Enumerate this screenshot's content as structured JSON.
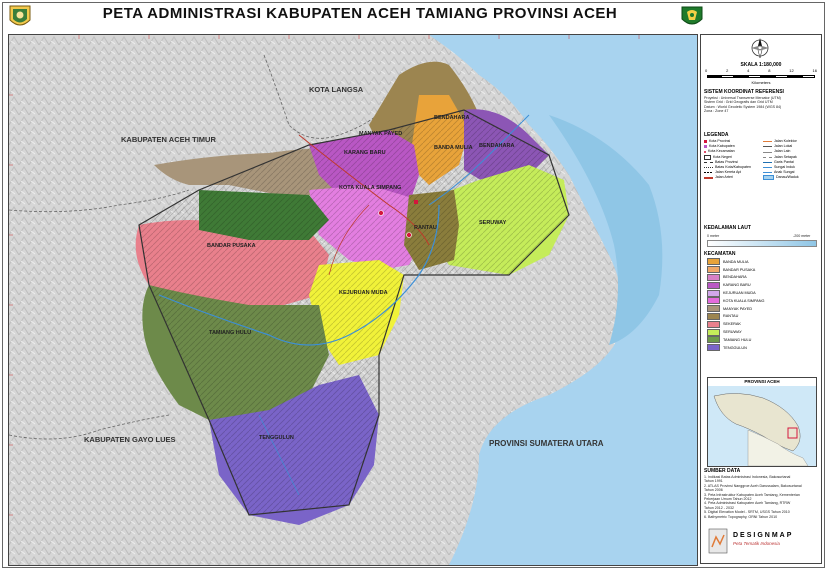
{
  "title": "PETA ADMINISTRASI KABUPATEN ACEH TAMIANG PROVINSI ACEH",
  "map_labels": {
    "kota_langsa": "KOTA LANGSA",
    "kab_aceh_timur": "KABUPATEN ACEH TIMUR",
    "kab_gayo_lues": "KABUPATEN GAYO LUES",
    "prov_sumut": "PROVINSI SUMATERA UTARA",
    "tenggulun": "TENGGULUN",
    "karang_baru": "KARANG BARU",
    "manyak_payed": "MANYAK PAYED",
    "bendahara": "BENDAHARA",
    "banda_mulia": "BANDA MULIA",
    "kejuruan_muda": "KEJURUAN MUDA",
    "tamiang_hulu": "TAMIANG HULU",
    "bandar_pusaka": "BANDAR PUSAKA",
    "rantau": "RANTAU",
    "kota_kuala_simpang": "KOTA KUALA SIMPANG",
    "sekerak": "SEKERAK",
    "seruway": "SERUWAY",
    "bendahara2": "BENDAHARA"
  },
  "sidebar": {
    "scale_title": "SKALA 1:180,000",
    "scale_nums": [
      "0",
      "2",
      "4",
      "8",
      "12",
      "16"
    ],
    "km_label": "Kilometers",
    "coord_title": "SISTEM KOORDINAT REFERENSI",
    "coord_text": [
      "Proyeksi : Universal Transverse Mercator (UTM)",
      "Sistem Grid : Grid Geografis dan Grid UTM",
      "Datum : World Geodetic System 1984 (WGS 84)",
      "Zona : Zone 47"
    ],
    "legend_title": "LEGENDA",
    "legend_left": [
      "Kota Provinsi",
      "Kota Kabupaten",
      "Kota Kecamatan",
      "Kota Negeri",
      "Batas Provinsi",
      "Batas Kota/Kabupaten",
      "Jalan Kereta Api",
      "Jalan Arteri"
    ],
    "legend_right": [
      "Jalan Kolektor",
      "Jalan Lokal",
      "Jalan Lain",
      "Jalan Setapak",
      "Garis Pantai",
      "Sungai Induk",
      "Anak Sungai",
      "Danau/Waduk"
    ],
    "depth_title": "KEDALAMAN LAUT",
    "depth_min": "0 meter",
    "depth_max": "-200 meter",
    "kec_title": "KECAMATAN",
    "kecamatan": [
      {
        "name": "BANDA MULIA",
        "color": "#e8a33a"
      },
      {
        "name": "BANDAR PUSAKA",
        "color": "#f0a868"
      },
      {
        "name": "BENDAHARA",
        "color": "#d680c6"
      },
      {
        "name": "KARANG BARU",
        "color": "#b957c4"
      },
      {
        "name": "KEJURUAN MUDA",
        "color": "#d1a7ea"
      },
      {
        "name": "KOTA KUALA SIMPANG",
        "color": "#e36bdc"
      },
      {
        "name": "MANYAK PAYED",
        "color": "#a8957a"
      },
      {
        "name": "RANTAU",
        "color": "#9c8550"
      },
      {
        "name": "SEKERAK",
        "color": "#e9808c"
      },
      {
        "name": "SERUWAY",
        "color": "#c5ec5a"
      },
      {
        "name": "TAMIANG HULU",
        "color": "#6d9a4a"
      },
      {
        "name": "TENGGULUN",
        "color": "#7a64c8"
      }
    ],
    "inset_title": "PROVINSI ACEH",
    "source_title": "SUMBER DATA",
    "sources": [
      "1. Indikasi Batas Administrasi Indonesia, Bakosurtanal",
      "   Tahun 1991",
      "2. ATLAS Provinsi Nanggroe Aceh Darussalam, Bakosurtanal",
      "   Tahun 2006",
      "3. Peta Infrastruktur Kabupaten Aceh Tamiang, Kementerian",
      "   Pekerjaan Umum Tahun 2012",
      "4. Peta Administrasi Kabupaten Aceh Tamiang, RTRW",
      "   Tahun 2012 - 2032",
      "5. Digital Elevation Model - SRTM, USGS Tahun 2010",
      "6. Bathymetric Topography, ORNI Tahun 2010"
    ],
    "brand": "DESIGNMAP",
    "brand_sub": "Peta Tematik Indonesia"
  }
}
